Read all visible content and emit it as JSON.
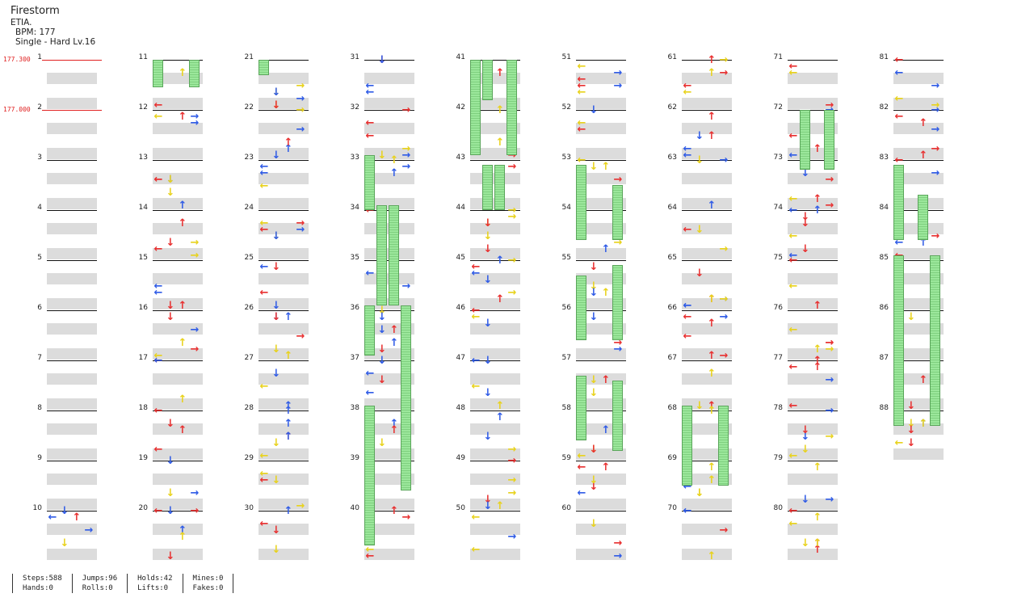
{
  "song": {
    "title": "Firestorm",
    "artist": "ETIA.",
    "bpm_label": "BPM: 177",
    "difficulty": "Single - Hard  Lv.16"
  },
  "bpm_markers": [
    {
      "value": "177.300"
    },
    {
      "value": "177.000"
    }
  ],
  "measures": [
    "1",
    "2",
    "3",
    "4",
    "5",
    "6",
    "7",
    "8",
    "9",
    "10",
    "11",
    "12",
    "13",
    "14",
    "15",
    "16",
    "17",
    "18",
    "19",
    "20",
    "21",
    "22",
    "23",
    "24",
    "25",
    "26",
    "27",
    "28",
    "29",
    "30",
    "31",
    "32",
    "33",
    "34",
    "35",
    "36",
    "37",
    "38",
    "39",
    "40",
    "41",
    "42",
    "43",
    "44",
    "45",
    "46",
    "47",
    "48",
    "49",
    "50",
    "51",
    "52",
    "53",
    "54",
    "55",
    "56",
    "57",
    "58",
    "59",
    "60",
    "61",
    "62",
    "63",
    "64",
    "65",
    "66",
    "67",
    "68",
    "69",
    "70",
    "71",
    "72",
    "73",
    "74",
    "75",
    "76",
    "77",
    "78",
    "79",
    "80",
    "81",
    "82",
    "83",
    "84",
    "85",
    "86",
    "87",
    "88"
  ],
  "stats": {
    "steps": "Steps:588",
    "hands": "Hands:0",
    "jumps": "Jumps:96",
    "rolls": "Rolls:0",
    "holds": "Holds:42",
    "lifts": "Lifts:0",
    "mines": "Mines:0",
    "fakes": "Fakes:0"
  },
  "icons": {
    "left": "left-arrow-icon",
    "down": "down-arrow-icon",
    "up": "up-arrow-icon",
    "right": "right-arrow-icon"
  },
  "colors": {
    "red": "#e83030",
    "blue": "#2f5be6",
    "yellow": "#e8d21c",
    "hold": "#9be79b",
    "bar": "#dcdcdc"
  }
}
